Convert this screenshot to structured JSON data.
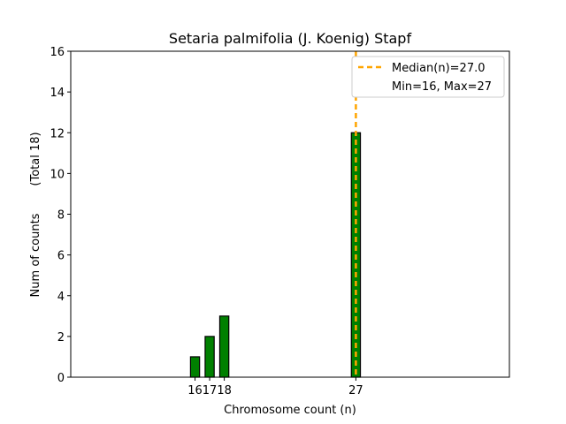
{
  "chart_data": {
    "type": "bar",
    "title": "Setaria palmifolia (J. Koenig) Stapf",
    "xlabel": "Chromosome count (n)",
    "ylabel": "Num of counts",
    "ylabel_total": "(Total 18)",
    "xlim": [
      7.5,
      37.5
    ],
    "ylim": [
      0,
      16
    ],
    "yticks": [
      0,
      2,
      4,
      6,
      8,
      10,
      12,
      14,
      16
    ],
    "xticks": [
      16,
      17,
      18,
      27
    ],
    "bins": [
      {
        "x": 16,
        "count": 1
      },
      {
        "x": 17,
        "count": 2
      },
      {
        "x": 18,
        "count": 3
      },
      {
        "x": 27,
        "count": 12
      }
    ],
    "bar_color": "#008000",
    "median": 27.0,
    "median_color": "#FFA500",
    "legend": {
      "position": "upper-right",
      "median_label": "Median(n)=27.0",
      "range_label": "Min=16, Max=27"
    }
  }
}
